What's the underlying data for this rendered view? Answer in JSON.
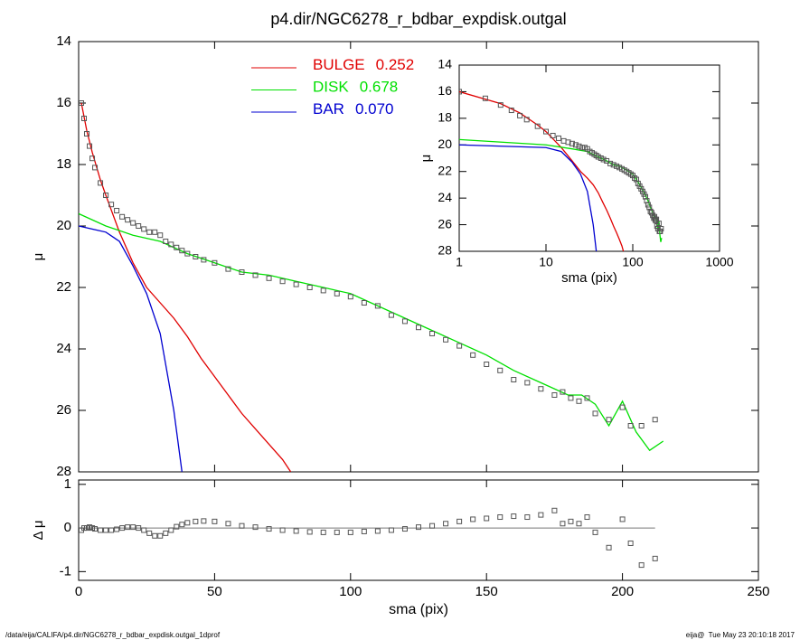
{
  "chart_data": [
    {
      "type": "line",
      "title": "p4.dir/NGC6278_r_bdbar_expdisk.outgal",
      "ylabel": "μ",
      "xlim": [
        0,
        250
      ],
      "ylim": [
        28,
        14
      ],
      "yticks": [
        14,
        16,
        18,
        20,
        22,
        24,
        26,
        28
      ],
      "series": [
        {
          "name": "BULGE",
          "fraction": "0.252",
          "color": "#e00000",
          "x": [
            1,
            3,
            5,
            8,
            10,
            15,
            20,
            25,
            30,
            35,
            40,
            45,
            50,
            55,
            60,
            65,
            70,
            75,
            78
          ],
          "values": [
            16.0,
            16.9,
            17.6,
            18.5,
            19.0,
            20.2,
            21.2,
            22.0,
            22.5,
            23.0,
            23.6,
            24.3,
            24.9,
            25.5,
            26.1,
            26.6,
            27.1,
            27.6,
            28.0
          ]
        },
        {
          "name": "DISK",
          "fraction": "0.678",
          "color": "#00e000",
          "x": [
            0,
            10,
            20,
            30,
            40,
            50,
            60,
            70,
            80,
            90,
            100,
            110,
            120,
            130,
            140,
            150,
            160,
            170,
            180,
            185,
            190,
            195,
            200,
            205,
            210,
            215
          ],
          "values": [
            19.6,
            20.0,
            20.3,
            20.5,
            20.9,
            21.2,
            21.5,
            21.6,
            21.8,
            22.0,
            22.2,
            22.6,
            23.0,
            23.4,
            23.8,
            24.2,
            24.7,
            25.1,
            25.5,
            25.5,
            25.8,
            26.5,
            25.7,
            26.7,
            27.3,
            27.0
          ]
        },
        {
          "name": "BAR",
          "fraction": "0.070",
          "color": "#0000d0",
          "x": [
            0,
            10,
            15,
            20,
            25,
            30,
            35,
            38
          ],
          "values": [
            20.0,
            20.2,
            20.5,
            21.3,
            22.2,
            23.5,
            26.0,
            28.0
          ]
        }
      ],
      "points": {
        "color": "#555555",
        "x": [
          1,
          2,
          3,
          4,
          5,
          6,
          8,
          10,
          12,
          14,
          16,
          18,
          20,
          22,
          24,
          26,
          28,
          30,
          32,
          34,
          36,
          38,
          40,
          43,
          46,
          50,
          55,
          60,
          65,
          70,
          75,
          80,
          85,
          90,
          95,
          100,
          105,
          110,
          115,
          120,
          125,
          130,
          135,
          140,
          145,
          150,
          155,
          160,
          165,
          170,
          175,
          178,
          181,
          184,
          187,
          190,
          195,
          200,
          203,
          207,
          212
        ],
        "values": [
          16.0,
          16.5,
          17.0,
          17.4,
          17.8,
          18.1,
          18.6,
          19.0,
          19.3,
          19.5,
          19.7,
          19.8,
          19.9,
          20.0,
          20.1,
          20.2,
          20.2,
          20.3,
          20.5,
          20.6,
          20.7,
          20.8,
          20.9,
          21.0,
          21.1,
          21.2,
          21.4,
          21.5,
          21.6,
          21.7,
          21.8,
          21.9,
          22.0,
          22.1,
          22.2,
          22.3,
          22.5,
          22.6,
          22.9,
          23.1,
          23.3,
          23.5,
          23.7,
          23.9,
          24.2,
          24.5,
          24.7,
          25.0,
          25.1,
          25.3,
          25.5,
          25.4,
          25.6,
          25.7,
          25.6,
          26.1,
          26.3,
          25.9,
          26.5,
          26.5,
          26.3
        ]
      }
    },
    {
      "type": "scatter",
      "xlabel": "sma (pix)",
      "ylabel": "Δ μ",
      "xlim": [
        0,
        250
      ],
      "xticks": [
        0,
        50,
        100,
        150,
        200,
        250
      ],
      "ylim": [
        -1.2,
        1.1
      ],
      "yticks": [
        -1,
        0,
        1
      ],
      "color": "#555555",
      "x": [
        1,
        2,
        3,
        4,
        5,
        6,
        8,
        10,
        12,
        14,
        16,
        18,
        20,
        22,
        24,
        26,
        28,
        30,
        32,
        34,
        36,
        38,
        40,
        43,
        46,
        50,
        55,
        60,
        65,
        70,
        75,
        80,
        85,
        90,
        95,
        100,
        105,
        110,
        115,
        120,
        125,
        130,
        135,
        140,
        145,
        150,
        155,
        160,
        165,
        170,
        175,
        178,
        181,
        184,
        187,
        190,
        195,
        200,
        203,
        207,
        212
      ],
      "values": [
        -0.05,
        0,
        0,
        0.02,
        0,
        -0.02,
        -0.05,
        -0.05,
        -0.05,
        -0.03,
        0,
        0.02,
        0.02,
        0,
        -0.05,
        -0.12,
        -0.18,
        -0.18,
        -0.12,
        -0.05,
        0.03,
        0.08,
        0.12,
        0.15,
        0.16,
        0.15,
        0.1,
        0.05,
        0.02,
        -0.02,
        -0.05,
        -0.07,
        -0.09,
        -0.1,
        -0.1,
        -0.1,
        -0.08,
        -0.07,
        -0.05,
        -0.02,
        0.02,
        0.05,
        0.1,
        0.15,
        0.2,
        0.22,
        0.25,
        0.27,
        0.25,
        0.3,
        0.4,
        0.1,
        0.15,
        0.1,
        0.25,
        -0.1,
        -0.45,
        0.2,
        -0.35,
        -0.85,
        -0.7
      ]
    },
    {
      "type": "line",
      "xlabel": "sma (pix)",
      "ylabel": "μ",
      "log_x": true,
      "xlim": [
        1,
        1000
      ],
      "xticks": [
        1,
        10,
        100,
        1000
      ],
      "ylim": [
        28,
        14
      ],
      "yticks": [
        14,
        16,
        18,
        20,
        22,
        24,
        26,
        28
      ],
      "series": [
        {
          "color": "#e00000",
          "x": [
            1,
            3,
            5,
            8,
            10,
            15,
            20,
            25,
            30,
            35,
            40,
            45,
            50,
            55,
            60,
            65,
            70,
            75,
            78
          ],
          "values": [
            16.0,
            16.9,
            17.6,
            18.5,
            19.0,
            20.2,
            21.2,
            22.0,
            22.5,
            23.0,
            23.6,
            24.3,
            24.9,
            25.5,
            26.1,
            26.6,
            27.1,
            27.6,
            28.0
          ]
        },
        {
          "color": "#00e000",
          "x": [
            1,
            10,
            20,
            30,
            40,
            50,
            60,
            70,
            80,
            90,
            100,
            110,
            120,
            130,
            140,
            150,
            160,
            170,
            180,
            185,
            190,
            195,
            200,
            205,
            210,
            215
          ],
          "values": [
            19.6,
            20.0,
            20.3,
            20.5,
            20.9,
            21.2,
            21.5,
            21.6,
            21.8,
            22.0,
            22.2,
            22.6,
            23.0,
            23.4,
            23.8,
            24.2,
            24.7,
            25.1,
            25.5,
            25.5,
            25.8,
            26.5,
            25.7,
            26.7,
            27.3,
            27.0
          ]
        },
        {
          "color": "#0000d0",
          "x": [
            1,
            10,
            15,
            20,
            25,
            30,
            35,
            38
          ],
          "values": [
            20.0,
            20.2,
            20.5,
            21.3,
            22.2,
            23.5,
            26.0,
            28.0
          ]
        }
      ],
      "points": {
        "color": "#555555",
        "x": [
          1,
          2,
          3,
          4,
          5,
          6,
          8,
          10,
          12,
          14,
          16,
          18,
          20,
          22,
          24,
          26,
          28,
          30,
          32,
          34,
          36,
          38,
          40,
          43,
          46,
          50,
          55,
          60,
          65,
          70,
          75,
          80,
          85,
          90,
          95,
          100,
          105,
          110,
          115,
          120,
          125,
          130,
          135,
          140,
          145,
          150,
          155,
          160,
          165,
          170,
          175,
          178,
          181,
          184,
          187,
          190,
          195,
          200,
          203,
          207,
          212
        ],
        "values": [
          16.0,
          16.5,
          17.0,
          17.4,
          17.8,
          18.1,
          18.6,
          19.0,
          19.3,
          19.5,
          19.7,
          19.8,
          19.9,
          20.0,
          20.1,
          20.2,
          20.2,
          20.3,
          20.5,
          20.6,
          20.7,
          20.8,
          20.9,
          21.0,
          21.1,
          21.2,
          21.4,
          21.5,
          21.6,
          21.7,
          21.8,
          21.9,
          22.0,
          22.1,
          22.2,
          22.3,
          22.5,
          22.6,
          22.9,
          23.1,
          23.3,
          23.5,
          23.7,
          23.9,
          24.2,
          24.5,
          24.7,
          25.0,
          25.1,
          25.3,
          25.5,
          25.4,
          25.6,
          25.7,
          25.6,
          26.1,
          26.3,
          25.9,
          26.5,
          26.5,
          26.3
        ]
      }
    }
  ],
  "footer": {
    "left": "/data/eija/CALIFA/p4.dir/NGC6278_r_bdbar_expdisk.outgal_1dprof",
    "right": "eija@  Tue May 23 20:10:18 2017"
  }
}
